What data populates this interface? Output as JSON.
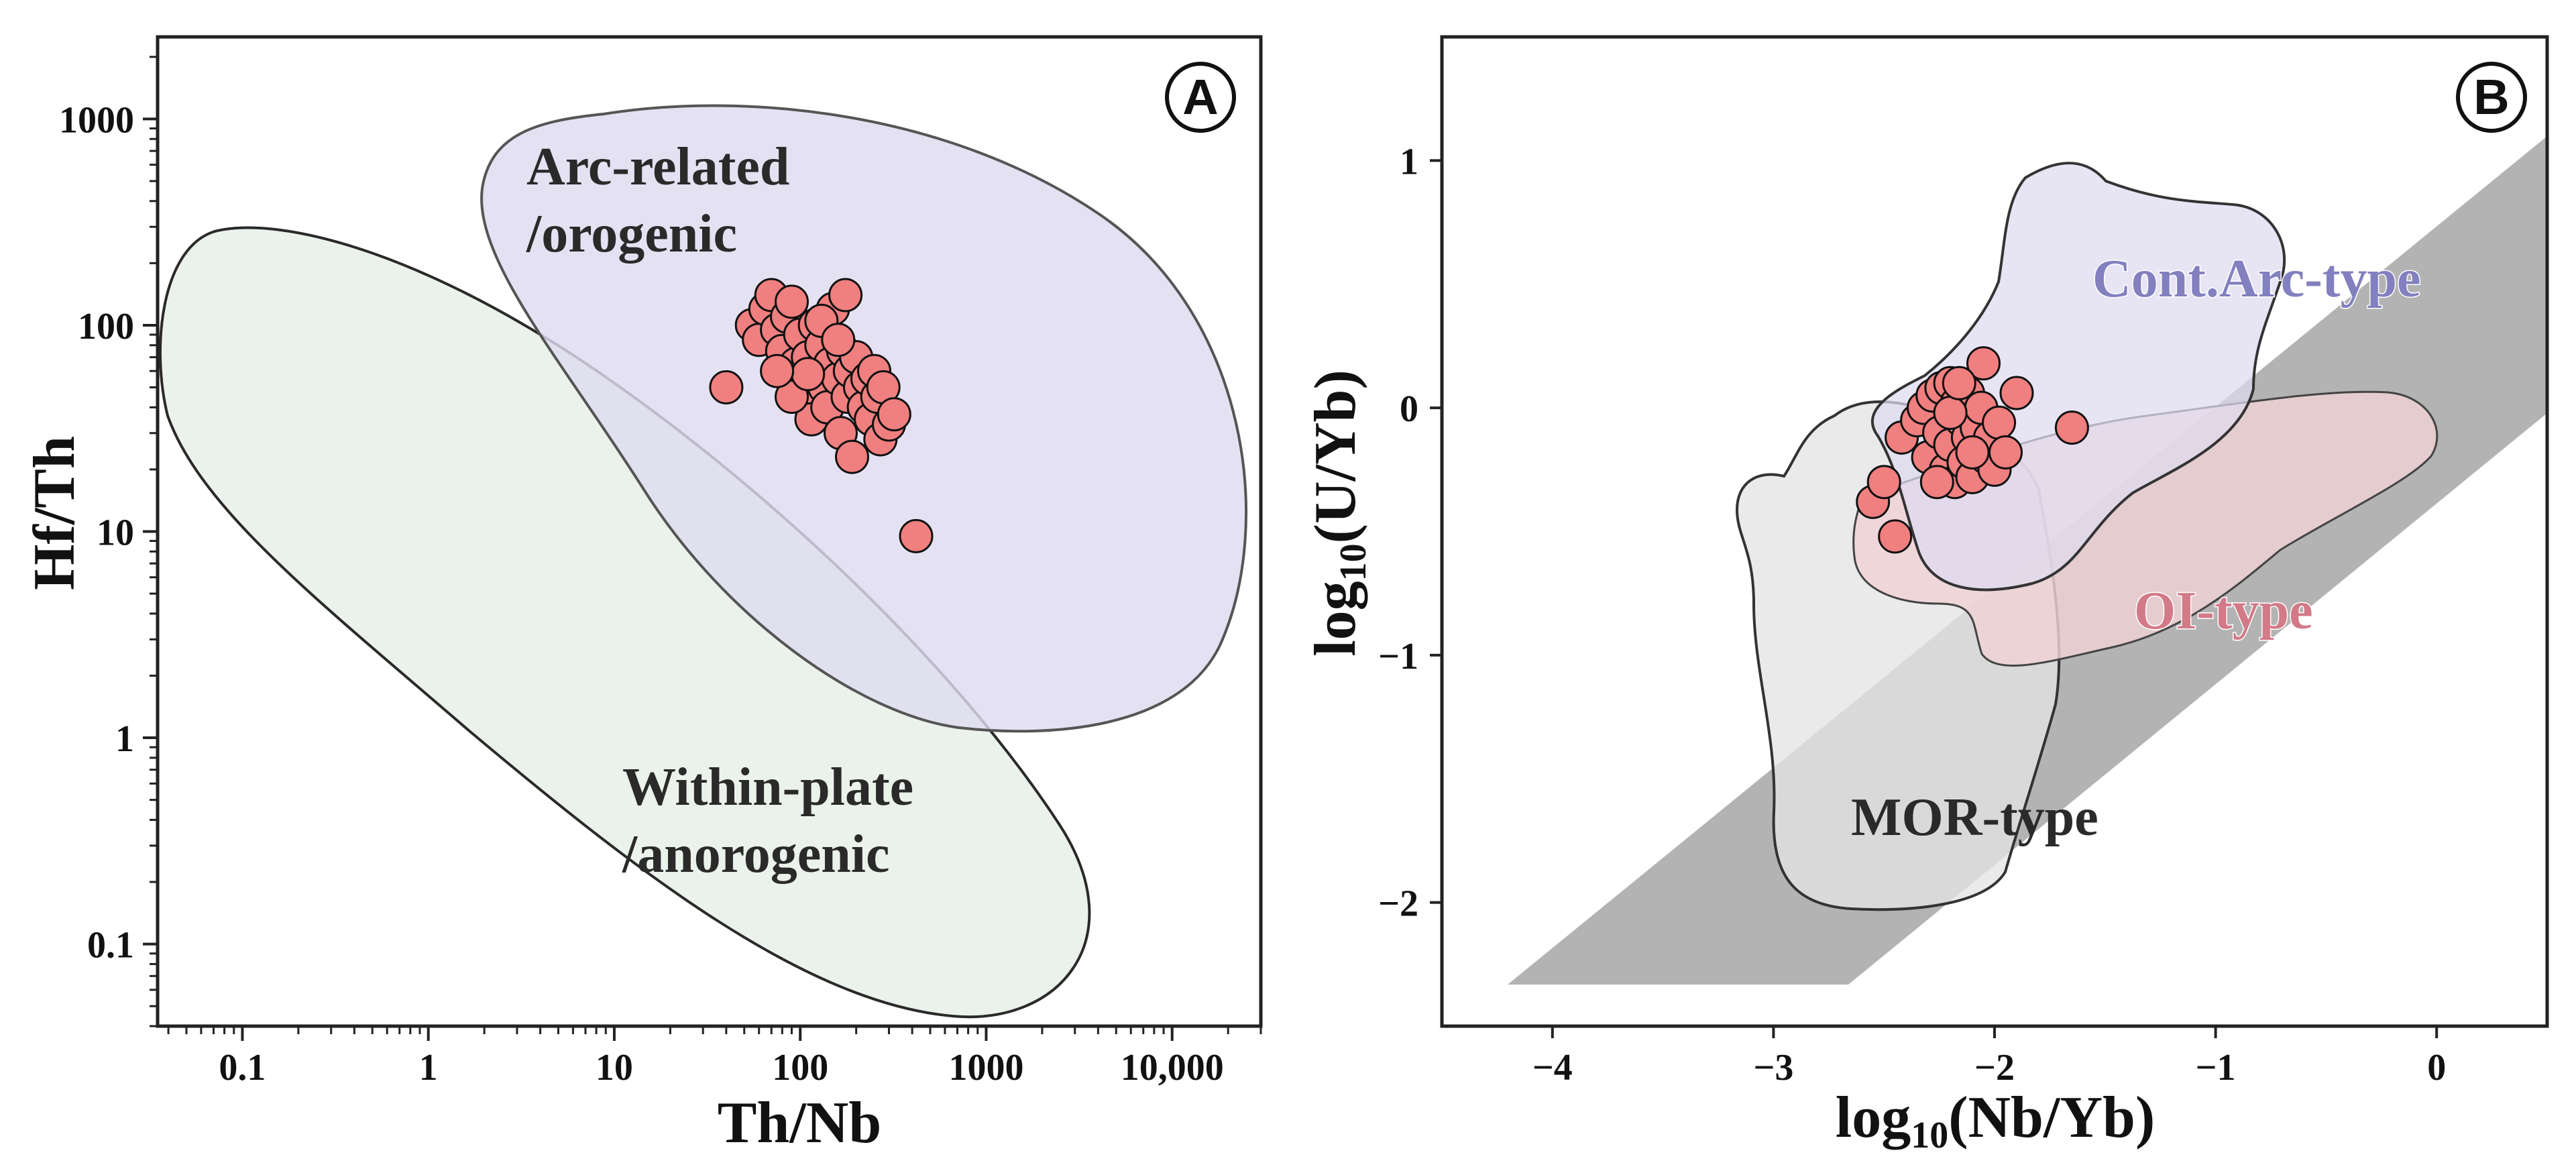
{
  "colors": {
    "point_fill": "#f07f7f",
    "point_stroke": "#111111",
    "arc_field": "#dedcef",
    "within_plate_field": "#e6efe7",
    "cont_arc_field": "#dedbf0",
    "oi_field": "#efd2d6",
    "mor_field": "#e4e4e4",
    "mantle_band": "#b3b3b3",
    "cont_arc_label": "#8280bf",
    "oi_label": "#d27a88",
    "dark_label": "#2a2a2a"
  },
  "chart_data": [
    {
      "type": "scatter",
      "panel": "A",
      "xlabel": "Th/Nb",
      "ylabel": "Hf/Th",
      "x_scale": "log",
      "y_scale": "log",
      "xlim": [
        0.035,
        30000
      ],
      "ylim": [
        0.04,
        2500
      ],
      "x_ticks": [
        {
          "value": 0.1,
          "label": "0.1"
        },
        {
          "value": 1,
          "label": "1"
        },
        {
          "value": 10,
          "label": "10"
        },
        {
          "value": 100,
          "label": "100"
        },
        {
          "value": 1000,
          "label": "1000"
        },
        {
          "value": 10000,
          "label": "10,000"
        }
      ],
      "y_ticks": [
        {
          "value": 0.1,
          "label": "0.1"
        },
        {
          "value": 1,
          "label": "1"
        },
        {
          "value": 10,
          "label": "10"
        },
        {
          "value": 100,
          "label": "100"
        },
        {
          "value": 1000,
          "label": "1000"
        }
      ],
      "fields": [
        {
          "name": "Arc-related /orogenic",
          "label_lines": [
            "Arc-related",
            "/orogenic"
          ]
        },
        {
          "name": "Within-plate /anorogenic",
          "label_lines": [
            "Within-plate",
            "/anorogenic"
          ]
        }
      ],
      "points": [
        [
          40,
          50
        ],
        [
          420,
          9.5
        ],
        [
          55,
          100
        ],
        [
          60,
          85
        ],
        [
          65,
          120
        ],
        [
          70,
          140
        ],
        [
          75,
          95
        ],
        [
          80,
          75
        ],
        [
          85,
          110
        ],
        [
          90,
          130
        ],
        [
          95,
          65
        ],
        [
          100,
          90
        ],
        [
          100,
          55
        ],
        [
          105,
          45
        ],
        [
          110,
          70
        ],
        [
          115,
          35
        ],
        [
          120,
          100
        ],
        [
          125,
          60
        ],
        [
          130,
          80
        ],
        [
          135,
          50
        ],
        [
          140,
          40
        ],
        [
          145,
          65
        ],
        [
          150,
          120
        ],
        [
          160,
          55
        ],
        [
          165,
          30
        ],
        [
          170,
          75
        ],
        [
          175,
          140
        ],
        [
          180,
          45
        ],
        [
          185,
          60
        ],
        [
          190,
          23
        ],
        [
          200,
          70
        ],
        [
          210,
          50
        ],
        [
          220,
          40
        ],
        [
          230,
          55
        ],
        [
          240,
          35
        ],
        [
          250,
          60
        ],
        [
          260,
          45
        ],
        [
          270,
          28
        ],
        [
          280,
          50
        ],
        [
          300,
          33
        ],
        [
          320,
          37
        ],
        [
          90,
          45
        ],
        [
          110,
          58
        ],
        [
          75,
          60
        ],
        [
          130,
          105
        ],
        [
          160,
          85
        ]
      ]
    },
    {
      "type": "scatter",
      "panel": "B",
      "xlabel": "log10(Nb/Yb)",
      "ylabel": "log10(U/Yb)",
      "xlabel_parts": {
        "pre": "log",
        "sub": "10",
        "post": "(Nb/Yb)"
      },
      "ylabel_parts": {
        "pre": "log",
        "sub": "10",
        "post": "(U/Yb)"
      },
      "xlim": [
        -4.5,
        0.5
      ],
      "ylim": [
        -2.5,
        1.5
      ],
      "x_ticks": [
        {
          "value": -4,
          "label": "−4"
        },
        {
          "value": -3,
          "label": "−3"
        },
        {
          "value": -2,
          "label": "−2"
        },
        {
          "value": -1,
          "label": "−1"
        },
        {
          "value": 0,
          "label": "0"
        }
      ],
      "y_ticks": [
        {
          "value": -2,
          "label": "−2"
        },
        {
          "value": -1,
          "label": "−1"
        },
        {
          "value": 0,
          "label": "0"
        },
        {
          "value": 1,
          "label": "1"
        }
      ],
      "fields": [
        {
          "name": "Cont.Arc-type",
          "label": "Cont.Arc-type"
        },
        {
          "name": "OI-type",
          "label": "OI-type"
        },
        {
          "name": "MOR-type",
          "label": "MOR-type"
        }
      ],
      "points": [
        [
          -2.55,
          -0.38
        ],
        [
          -2.5,
          -0.3
        ],
        [
          -2.45,
          -0.52
        ],
        [
          -2.42,
          -0.12
        ],
        [
          -2.35,
          -0.05
        ],
        [
          -2.32,
          0.0
        ],
        [
          -2.3,
          -0.2
        ],
        [
          -2.28,
          0.05
        ],
        [
          -2.25,
          -0.1
        ],
        [
          -2.24,
          0.08
        ],
        [
          -2.22,
          -0.25
        ],
        [
          -2.2,
          0.1
        ],
        [
          -2.2,
          -0.15
        ],
        [
          -2.18,
          -0.3
        ],
        [
          -2.17,
          0.02
        ],
        [
          -2.15,
          -0.05
        ],
        [
          -2.14,
          -0.22
        ],
        [
          -2.12,
          0.06
        ],
        [
          -2.12,
          -0.12
        ],
        [
          -2.1,
          -0.28
        ],
        [
          -2.08,
          -0.08
        ],
        [
          -2.06,
          0.0
        ],
        [
          -2.05,
          0.18
        ],
        [
          -2.04,
          -0.2
        ],
        [
          -2.02,
          -0.12
        ],
        [
          -2.0,
          -0.25
        ],
        [
          -1.98,
          -0.06
        ],
        [
          -1.95,
          -0.18
        ],
        [
          -1.9,
          0.06
        ],
        [
          -1.65,
          -0.08
        ],
        [
          -2.2,
          -0.02
        ],
        [
          -2.16,
          0.1
        ],
        [
          -2.26,
          -0.3
        ],
        [
          -2.1,
          -0.18
        ]
      ]
    }
  ]
}
